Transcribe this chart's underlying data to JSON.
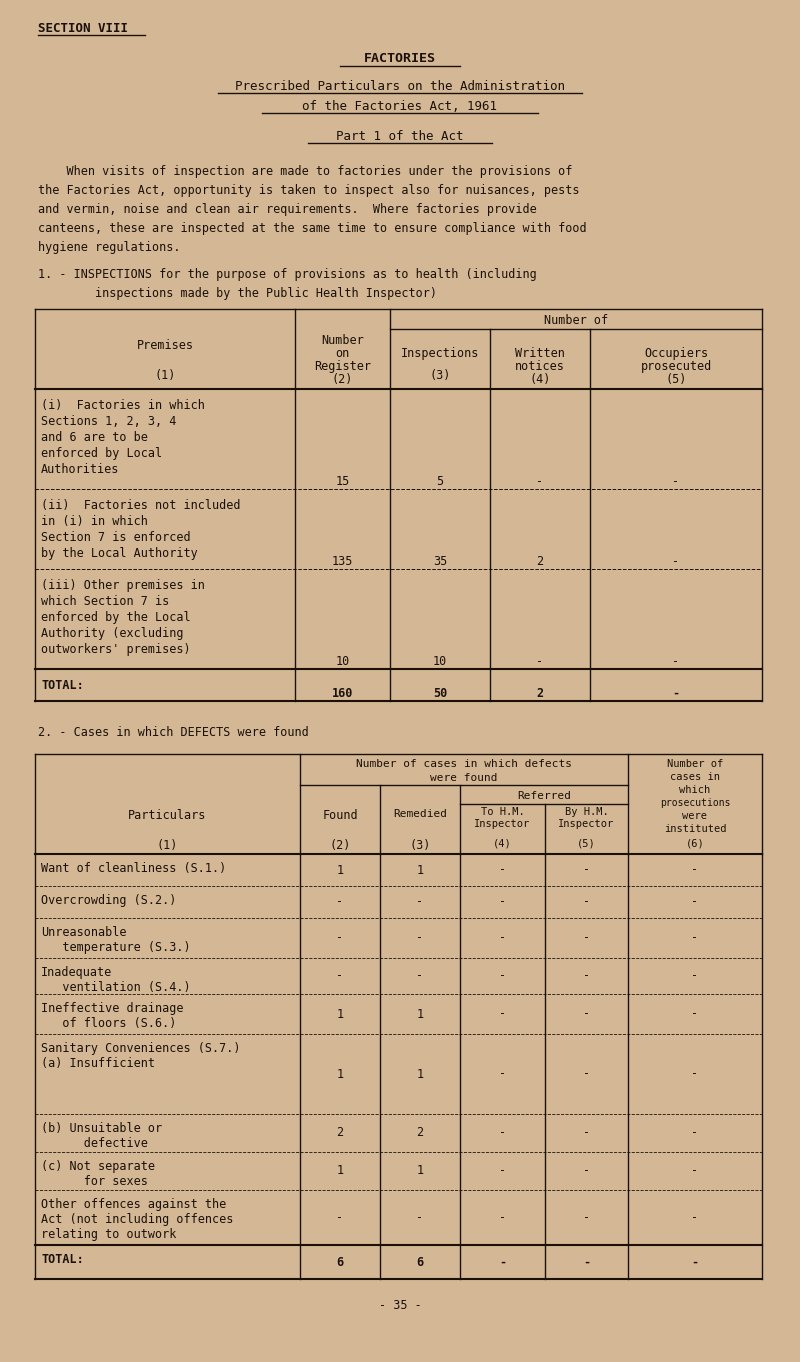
{
  "bg_color": "#d4b896",
  "text_color": "#1a1008",
  "section_header": "SECTION VIII",
  "title1": "FACTORIES",
  "title2": "Prescribed Particulars on the Administration",
  "title3": "of the Factories Act, 1961",
  "title4": "Part 1 of the Act",
  "para_lines": [
    "    When visits of inspection are made to factories under the provisions of",
    "the Factories Act, opportunity is taken to inspect also for nuisances, pests",
    "and vermin, noise and clean air requirements.  Where factories provide",
    "canteens, these are inspected at the same time to ensure compliance with food",
    "hygiene regulations."
  ],
  "s1_line1": "1. - INSPECTIONS for the purpose of provisions as to health (including",
  "s1_line2": "        inspections made by the Public Health Inspector)",
  "s2_header": "2. - Cases in which DEFECTS were found",
  "footer": "- 35 -",
  "t1_rows": [
    [
      "(i)  Factories in which",
      "Sections 1, 2, 3, 4",
      "and 6 are to be",
      "enforced by Local",
      "Authorities",
      "15",
      "5",
      "-",
      "-"
    ],
    [
      "(ii)  Factories not included",
      "in (i) in which",
      "Section 7 is enforced",
      "by the Local Authority",
      "",
      "135",
      "35",
      "2",
      "-"
    ],
    [
      "(iii) Other premises in",
      "which Section 7 is",
      "enforced by the Local",
      "Authority (excluding",
      "outworkers' premises)",
      "10",
      "10",
      "-",
      "-"
    ],
    [
      "TOTAL:",
      "",
      "",
      "",
      "",
      "160",
      "50",
      "2",
      "-"
    ]
  ],
  "t2_rows": [
    [
      "Want of cleanliness (S.1.)",
      "",
      "1",
      "1",
      "-",
      "-",
      "-"
    ],
    [
      "Overcrowding (S.2.)",
      "",
      "-",
      "-",
      "-",
      "-",
      "-"
    ],
    [
      "Unreasonable",
      "   temperature (S.3.)",
      "-",
      "-",
      "-",
      "-",
      "-"
    ],
    [
      "Inadequate",
      "   ventilation (S.4.)",
      "-",
      "-",
      "-",
      "-",
      "-"
    ],
    [
      "Ineffective drainage",
      "   of floors (S.6.)",
      "1",
      "1",
      "-",
      "-",
      "-"
    ],
    [
      "Sanitary Conveniences (S.7.)",
      "(a) Insufficient",
      "1",
      "1",
      "-",
      "-",
      "-"
    ],
    [
      "(b) Unsuitable or",
      "      defective",
      "2",
      "2",
      "-",
      "-",
      "-"
    ],
    [
      "(c) Not separate",
      "      for sexes",
      "1",
      "1",
      "-",
      "-",
      "-"
    ],
    [
      "Other offences against the",
      "Act (not including offences",
      "relating to outwork",
      "-",
      "-",
      "-",
      "-",
      "-"
    ],
    [
      "TOTAL:",
      "",
      "6",
      "6",
      "-",
      "-",
      "-"
    ]
  ]
}
